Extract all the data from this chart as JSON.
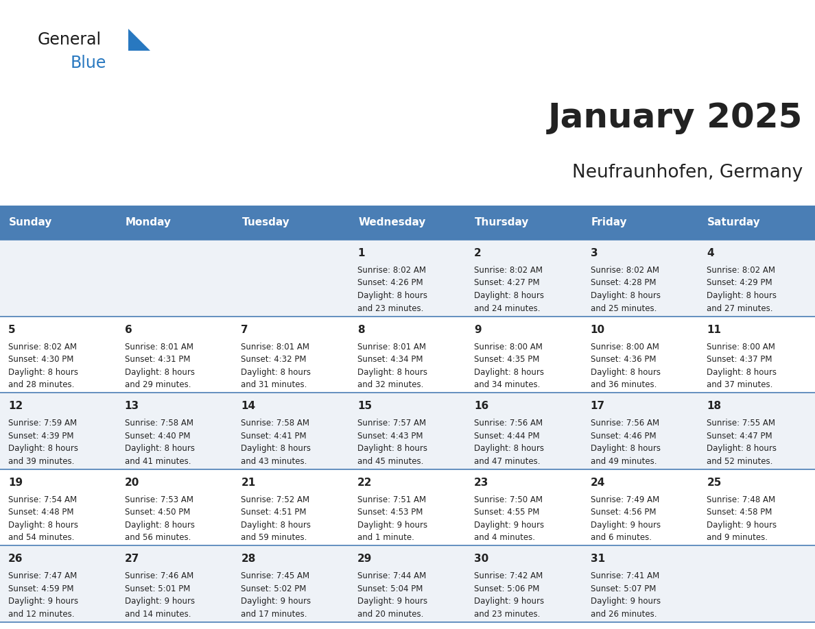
{
  "title": "January 2025",
  "subtitle": "Neufraunhofen, Germany",
  "header_color": "#4a7eb5",
  "header_text_color": "#ffffff",
  "day_names": [
    "Sunday",
    "Monday",
    "Tuesday",
    "Wednesday",
    "Thursday",
    "Friday",
    "Saturday"
  ],
  "alt_row_color": "#eef2f7",
  "row_color": "#ffffff",
  "separator_color": "#4a7eb5",
  "text_color": "#222222",
  "daylight_prefix": "Daylight: ",
  "days": [
    {
      "day": 1,
      "col": 3,
      "row": 0,
      "sunrise": "8:02 AM",
      "sunset": "4:26 PM",
      "dl_hours": "8 hours",
      "dl_mins": "23 minutes"
    },
    {
      "day": 2,
      "col": 4,
      "row": 0,
      "sunrise": "8:02 AM",
      "sunset": "4:27 PM",
      "dl_hours": "8 hours",
      "dl_mins": "24 minutes"
    },
    {
      "day": 3,
      "col": 5,
      "row": 0,
      "sunrise": "8:02 AM",
      "sunset": "4:28 PM",
      "dl_hours": "8 hours",
      "dl_mins": "25 minutes"
    },
    {
      "day": 4,
      "col": 6,
      "row": 0,
      "sunrise": "8:02 AM",
      "sunset": "4:29 PM",
      "dl_hours": "8 hours",
      "dl_mins": "27 minutes"
    },
    {
      "day": 5,
      "col": 0,
      "row": 1,
      "sunrise": "8:02 AM",
      "sunset": "4:30 PM",
      "dl_hours": "8 hours",
      "dl_mins": "28 minutes"
    },
    {
      "day": 6,
      "col": 1,
      "row": 1,
      "sunrise": "8:01 AM",
      "sunset": "4:31 PM",
      "dl_hours": "8 hours",
      "dl_mins": "29 minutes"
    },
    {
      "day": 7,
      "col": 2,
      "row": 1,
      "sunrise": "8:01 AM",
      "sunset": "4:32 PM",
      "dl_hours": "8 hours",
      "dl_mins": "31 minutes"
    },
    {
      "day": 8,
      "col": 3,
      "row": 1,
      "sunrise": "8:01 AM",
      "sunset": "4:34 PM",
      "dl_hours": "8 hours",
      "dl_mins": "32 minutes"
    },
    {
      "day": 9,
      "col": 4,
      "row": 1,
      "sunrise": "8:00 AM",
      "sunset": "4:35 PM",
      "dl_hours": "8 hours",
      "dl_mins": "34 minutes"
    },
    {
      "day": 10,
      "col": 5,
      "row": 1,
      "sunrise": "8:00 AM",
      "sunset": "4:36 PM",
      "dl_hours": "8 hours",
      "dl_mins": "36 minutes"
    },
    {
      "day": 11,
      "col": 6,
      "row": 1,
      "sunrise": "8:00 AM",
      "sunset": "4:37 PM",
      "dl_hours": "8 hours",
      "dl_mins": "37 minutes"
    },
    {
      "day": 12,
      "col": 0,
      "row": 2,
      "sunrise": "7:59 AM",
      "sunset": "4:39 PM",
      "dl_hours": "8 hours",
      "dl_mins": "39 minutes"
    },
    {
      "day": 13,
      "col": 1,
      "row": 2,
      "sunrise": "7:58 AM",
      "sunset": "4:40 PM",
      "dl_hours": "8 hours",
      "dl_mins": "41 minutes"
    },
    {
      "day": 14,
      "col": 2,
      "row": 2,
      "sunrise": "7:58 AM",
      "sunset": "4:41 PM",
      "dl_hours": "8 hours",
      "dl_mins": "43 minutes"
    },
    {
      "day": 15,
      "col": 3,
      "row": 2,
      "sunrise": "7:57 AM",
      "sunset": "4:43 PM",
      "dl_hours": "8 hours",
      "dl_mins": "45 minutes"
    },
    {
      "day": 16,
      "col": 4,
      "row": 2,
      "sunrise": "7:56 AM",
      "sunset": "4:44 PM",
      "dl_hours": "8 hours",
      "dl_mins": "47 minutes"
    },
    {
      "day": 17,
      "col": 5,
      "row": 2,
      "sunrise": "7:56 AM",
      "sunset": "4:46 PM",
      "dl_hours": "8 hours",
      "dl_mins": "49 minutes"
    },
    {
      "day": 18,
      "col": 6,
      "row": 2,
      "sunrise": "7:55 AM",
      "sunset": "4:47 PM",
      "dl_hours": "8 hours",
      "dl_mins": "52 minutes"
    },
    {
      "day": 19,
      "col": 0,
      "row": 3,
      "sunrise": "7:54 AM",
      "sunset": "4:48 PM",
      "dl_hours": "8 hours",
      "dl_mins": "54 minutes"
    },
    {
      "day": 20,
      "col": 1,
      "row": 3,
      "sunrise": "7:53 AM",
      "sunset": "4:50 PM",
      "dl_hours": "8 hours",
      "dl_mins": "56 minutes"
    },
    {
      "day": 21,
      "col": 2,
      "row": 3,
      "sunrise": "7:52 AM",
      "sunset": "4:51 PM",
      "dl_hours": "8 hours",
      "dl_mins": "59 minutes"
    },
    {
      "day": 22,
      "col": 3,
      "row": 3,
      "sunrise": "7:51 AM",
      "sunset": "4:53 PM",
      "dl_hours": "9 hours",
      "dl_mins": "1 minute"
    },
    {
      "day": 23,
      "col": 4,
      "row": 3,
      "sunrise": "7:50 AM",
      "sunset": "4:55 PM",
      "dl_hours": "9 hours",
      "dl_mins": "4 minutes"
    },
    {
      "day": 24,
      "col": 5,
      "row": 3,
      "sunrise": "7:49 AM",
      "sunset": "4:56 PM",
      "dl_hours": "9 hours",
      "dl_mins": "6 minutes"
    },
    {
      "day": 25,
      "col": 6,
      "row": 3,
      "sunrise": "7:48 AM",
      "sunset": "4:58 PM",
      "dl_hours": "9 hours",
      "dl_mins": "9 minutes"
    },
    {
      "day": 26,
      "col": 0,
      "row": 4,
      "sunrise": "7:47 AM",
      "sunset": "4:59 PM",
      "dl_hours": "9 hours",
      "dl_mins": "12 minutes"
    },
    {
      "day": 27,
      "col": 1,
      "row": 4,
      "sunrise": "7:46 AM",
      "sunset": "5:01 PM",
      "dl_hours": "9 hours",
      "dl_mins": "14 minutes"
    },
    {
      "day": 28,
      "col": 2,
      "row": 4,
      "sunrise": "7:45 AM",
      "sunset": "5:02 PM",
      "dl_hours": "9 hours",
      "dl_mins": "17 minutes"
    },
    {
      "day": 29,
      "col": 3,
      "row": 4,
      "sunrise": "7:44 AM",
      "sunset": "5:04 PM",
      "dl_hours": "9 hours",
      "dl_mins": "20 minutes"
    },
    {
      "day": 30,
      "col": 4,
      "row": 4,
      "sunrise": "7:42 AM",
      "sunset": "5:06 PM",
      "dl_hours": "9 hours",
      "dl_mins": "23 minutes"
    },
    {
      "day": 31,
      "col": 5,
      "row": 4,
      "sunrise": "7:41 AM",
      "sunset": "5:07 PM",
      "dl_hours": "9 hours",
      "dl_mins": "26 minutes"
    }
  ]
}
